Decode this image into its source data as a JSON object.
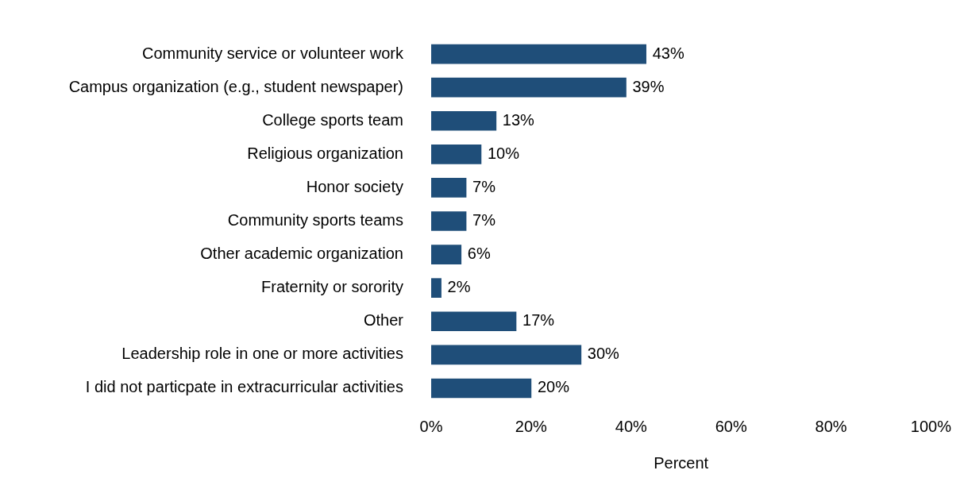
{
  "chart_data": {
    "type": "bar",
    "orientation": "horizontal",
    "xlabel": "Percent",
    "categories": [
      "Community service or volunteer work",
      "Campus organization (e.g., student newspaper)",
      "College sports team",
      "Religious organization",
      "Honor society",
      "Community sports teams",
      "Other academic organization",
      "Fraternity or sorority",
      "Other",
      "Leadership role in one or more activities",
      "I did not particpate in extracurricular activities"
    ],
    "values": [
      43,
      39,
      13,
      10,
      7,
      7,
      6,
      2,
      17,
      30,
      20
    ],
    "value_labels": [
      "43%",
      "39%",
      "13%",
      "10%",
      "7%",
      "7%",
      "6%",
      "2%",
      "17%",
      "30%",
      "20%"
    ],
    "color": "#1f4e79",
    "xlim": [
      0,
      100
    ],
    "xticks": [
      {
        "value": 0,
        "label": "0%"
      },
      {
        "value": 20,
        "label": "20%"
      },
      {
        "value": 40,
        "label": "40%"
      },
      {
        "value": 60,
        "label": "60%"
      },
      {
        "value": 80,
        "label": "80%"
      },
      {
        "value": 100,
        "label": "100%"
      }
    ]
  }
}
